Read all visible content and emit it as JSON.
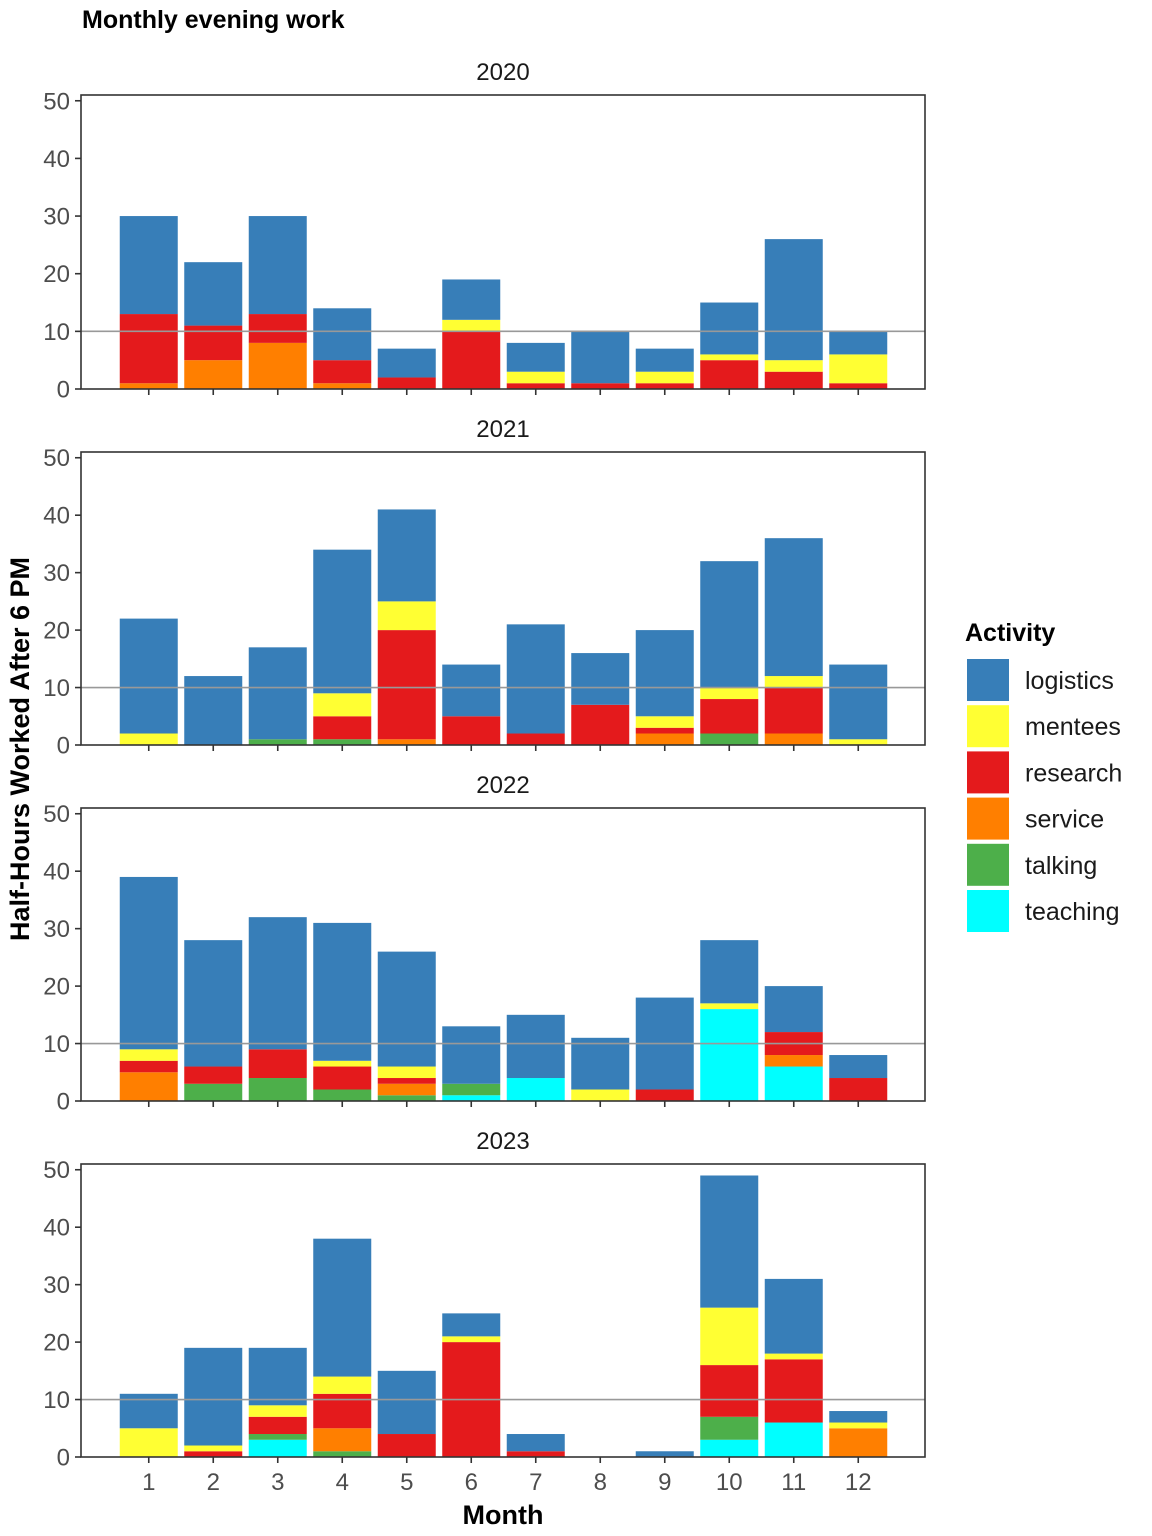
{
  "chart_data": {
    "type": "bar",
    "stacked": true,
    "faceted_by": "year",
    "title": "Monthly evening work",
    "xlabel": "Month",
    "ylabel": "Half-Hours Worked After 6 PM",
    "ylim": [
      0,
      51
    ],
    "y_ticks": [
      0,
      10,
      20,
      30,
      40,
      50
    ],
    "reference_line_y": 10,
    "grid": false,
    "legend_placement": "right",
    "legend_title": "Activity",
    "categories": [
      "1",
      "2",
      "3",
      "4",
      "5",
      "6",
      "7",
      "8",
      "9",
      "10",
      "11",
      "12"
    ],
    "stack_order_bottom_to_top": [
      "teaching",
      "talking",
      "service",
      "research",
      "mentees",
      "logistics"
    ],
    "legend": [
      {
        "name": "logistics",
        "color": "#377EB8"
      },
      {
        "name": "mentees",
        "color": "#FFFF33"
      },
      {
        "name": "research",
        "color": "#E41A1C"
      },
      {
        "name": "service",
        "color": "#FF7F00"
      },
      {
        "name": "talking",
        "color": "#4DAF4A"
      },
      {
        "name": "teaching",
        "color": "#00FFFF"
      }
    ],
    "panels": [
      {
        "year": "2020",
        "series": [
          {
            "name": "teaching",
            "values": [
              0,
              0,
              0,
              0,
              0,
              0,
              0,
              0,
              0,
              0,
              0,
              0
            ]
          },
          {
            "name": "talking",
            "values": [
              0,
              0,
              0,
              0,
              0,
              0,
              0,
              0,
              0,
              0,
              0,
              0
            ]
          },
          {
            "name": "service",
            "values": [
              1,
              5,
              8,
              1,
              0,
              0,
              0,
              0,
              0,
              0,
              0,
              0
            ]
          },
          {
            "name": "research",
            "values": [
              12,
              6,
              5,
              4,
              2,
              10,
              1,
              1,
              1,
              5,
              3,
              1
            ]
          },
          {
            "name": "mentees",
            "values": [
              0,
              0,
              0,
              0,
              0,
              2,
              2,
              0,
              2,
              1,
              2,
              5
            ]
          },
          {
            "name": "logistics",
            "values": [
              17,
              11,
              17,
              9,
              5,
              7,
              5,
              9,
              4,
              9,
              21,
              4
            ]
          }
        ]
      },
      {
        "year": "2021",
        "series": [
          {
            "name": "teaching",
            "values": [
              0,
              0,
              0,
              0,
              0,
              0,
              0,
              0,
              0,
              0,
              0,
              0
            ]
          },
          {
            "name": "talking",
            "values": [
              0,
              0,
              1,
              1,
              0,
              0,
              0,
              0,
              0,
              2,
              0,
              0
            ]
          },
          {
            "name": "service",
            "values": [
              0,
              0,
              0,
              0,
              1,
              0,
              0,
              0,
              2,
              0,
              2,
              0
            ]
          },
          {
            "name": "research",
            "values": [
              0,
              0,
              0,
              4,
              19,
              5,
              2,
              7,
              1,
              6,
              8,
              0
            ]
          },
          {
            "name": "mentees",
            "values": [
              2,
              0,
              0,
              4,
              5,
              0,
              0,
              0,
              2,
              2,
              2,
              1
            ]
          },
          {
            "name": "logistics",
            "values": [
              20,
              12,
              16,
              25,
              16,
              9,
              19,
              9,
              15,
              22,
              24,
              13
            ]
          }
        ]
      },
      {
        "year": "2022",
        "series": [
          {
            "name": "teaching",
            "values": [
              0,
              0,
              0,
              0,
              0,
              1,
              4,
              0,
              0,
              16,
              6,
              0
            ]
          },
          {
            "name": "talking",
            "values": [
              0,
              3,
              4,
              2,
              1,
              2,
              0,
              0,
              0,
              0,
              0,
              0
            ]
          },
          {
            "name": "service",
            "values": [
              5,
              0,
              0,
              0,
              2,
              0,
              0,
              0,
              0,
              0,
              2,
              0
            ]
          },
          {
            "name": "research",
            "values": [
              2,
              3,
              5,
              4,
              1,
              0,
              0,
              0,
              2,
              0,
              4,
              4
            ]
          },
          {
            "name": "mentees",
            "values": [
              2,
              0,
              0,
              1,
              2,
              0,
              0,
              2,
              0,
              1,
              0,
              0
            ]
          },
          {
            "name": "logistics",
            "values": [
              30,
              22,
              23,
              24,
              20,
              10,
              11,
              9,
              16,
              11,
              8,
              4
            ]
          }
        ]
      },
      {
        "year": "2023",
        "series": [
          {
            "name": "teaching",
            "values": [
              0,
              0,
              3,
              0,
              0,
              0,
              0,
              0,
              0,
              3,
              6,
              0
            ]
          },
          {
            "name": "talking",
            "values": [
              0,
              0,
              1,
              1,
              0,
              0,
              0,
              0,
              0,
              4,
              0,
              0
            ]
          },
          {
            "name": "service",
            "values": [
              0,
              0,
              0,
              4,
              0,
              0,
              0,
              0,
              0,
              0,
              0,
              5
            ]
          },
          {
            "name": "research",
            "values": [
              0,
              1,
              3,
              6,
              4,
              20,
              1,
              0,
              0,
              9,
              11,
              0
            ]
          },
          {
            "name": "mentees",
            "values": [
              5,
              1,
              2,
              3,
              0,
              1,
              0,
              0,
              0,
              10,
              1,
              1
            ]
          },
          {
            "name": "logistics",
            "values": [
              6,
              17,
              10,
              24,
              11,
              4,
              3,
              0,
              1,
              23,
              13,
              2
            ]
          }
        ]
      }
    ]
  }
}
